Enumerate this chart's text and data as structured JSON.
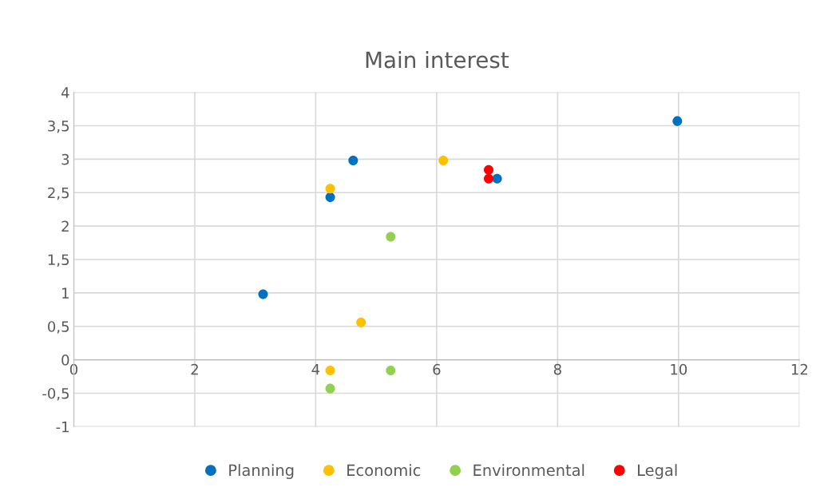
{
  "chart_data": {
    "type": "scatter",
    "title": "Main interest",
    "series": [
      {
        "name": "Planning",
        "color": "#0070c0",
        "x": [
          3.13,
          4.62,
          4.24,
          7.0,
          9.98
        ],
        "values": [
          0.98,
          2.98,
          2.43,
          2.71,
          3.57
        ]
      },
      {
        "name": "Economic",
        "color": "#ffc000",
        "x": [
          4.24,
          6.11,
          4.75,
          4.24
        ],
        "values": [
          2.56,
          2.98,
          0.56,
          -0.16
        ]
      },
      {
        "name": "Environmental",
        "color": "#92d050",
        "x": [
          5.24,
          5.24,
          4.24
        ],
        "values": [
          1.84,
          -0.16,
          -0.43
        ]
      },
      {
        "name": "Legal",
        "color": "#ff0000",
        "x": [
          6.86,
          6.86
        ],
        "values": [
          2.84,
          2.71
        ]
      }
    ],
    "xlim": [
      0,
      12
    ],
    "xticks": [
      0,
      2,
      4,
      6,
      8,
      10,
      12
    ],
    "ylim": [
      -1,
      4
    ],
    "yticks": [
      {
        "value": -1,
        "label": "-1"
      },
      {
        "value": -0.5,
        "label": "-0,5"
      },
      0,
      {
        "value": 0.5,
        "label": "0,5"
      },
      1,
      {
        "value": 1.5,
        "label": "1,5"
      },
      2,
      {
        "value": 2.5,
        "label": "2,5"
      },
      3,
      {
        "value": 3.5,
        "label": "3,5"
      },
      4
    ],
    "grid": true,
    "legend": "bottom",
    "marker": "circle"
  }
}
